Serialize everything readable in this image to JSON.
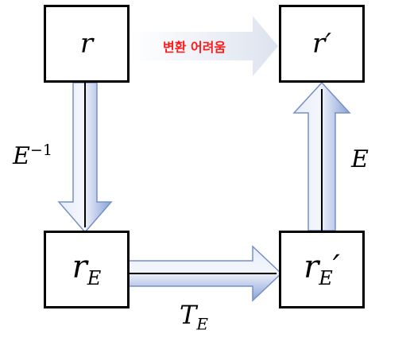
{
  "nodes": {
    "r": {
      "base": "r",
      "sub": "",
      "prime": ""
    },
    "r_prime": {
      "base": "r",
      "sub": "",
      "prime": "′"
    },
    "r_e": {
      "base": "r",
      "sub": "E",
      "prime": ""
    },
    "r_e_prime": {
      "base": "r",
      "sub": "E",
      "prime": "′"
    }
  },
  "edges": {
    "decode": {
      "base": "E",
      "sup": "−1"
    },
    "encode": {
      "base": "E"
    },
    "transform": {
      "base": "T",
      "sub": "E"
    },
    "direct": {
      "label": "변환 어려움"
    }
  },
  "colors": {
    "arrow_fill_light": "#e8edf8",
    "arrow_fill_dark": "#8fa6d8",
    "arrow_outline": "#7590c8",
    "arrow_core": "#000000",
    "hard_label": "#ff1a1a",
    "box_border": "#000000"
  }
}
